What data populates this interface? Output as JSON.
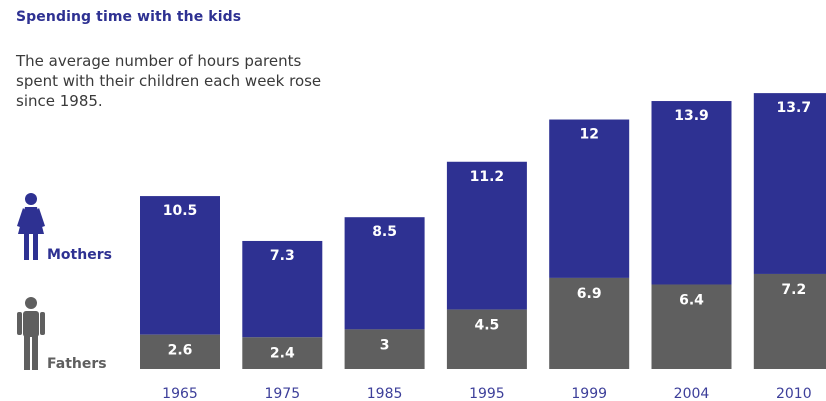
{
  "header": {
    "title": "Spending time with the kids",
    "subtitle": "The average number of hours parents spent with their children each week rose since 1985."
  },
  "legend": {
    "mothers_label": "Mothers",
    "fathers_label": "Fathers",
    "mothers_icon": "woman-figure-icon",
    "fathers_icon": "man-figure-icon"
  },
  "colors": {
    "mothers": "#2e3192",
    "fathers": "#5f5f5f",
    "tick_text": "#3d3f9a",
    "title": "#2e3192"
  },
  "chart_data": {
    "type": "bar",
    "stacked": true,
    "title": "Spending time with the kids",
    "subtitle": "The average number of hours parents spent with their children each week rose since 1985.",
    "categories": [
      "1965",
      "1975",
      "1985",
      "1995",
      "1999",
      "2004",
      "2010"
    ],
    "series": [
      {
        "name": "Fathers",
        "values": [
          2.6,
          2.4,
          3,
          4.5,
          6.9,
          6.4,
          7.2
        ]
      },
      {
        "name": "Mothers",
        "values": [
          10.5,
          7.3,
          8.5,
          11.2,
          12,
          13.9,
          13.7
        ]
      }
    ],
    "xlabel": "",
    "ylabel": "",
    "ylim": [
      0,
      21
    ],
    "grid": false,
    "legend": "left"
  }
}
